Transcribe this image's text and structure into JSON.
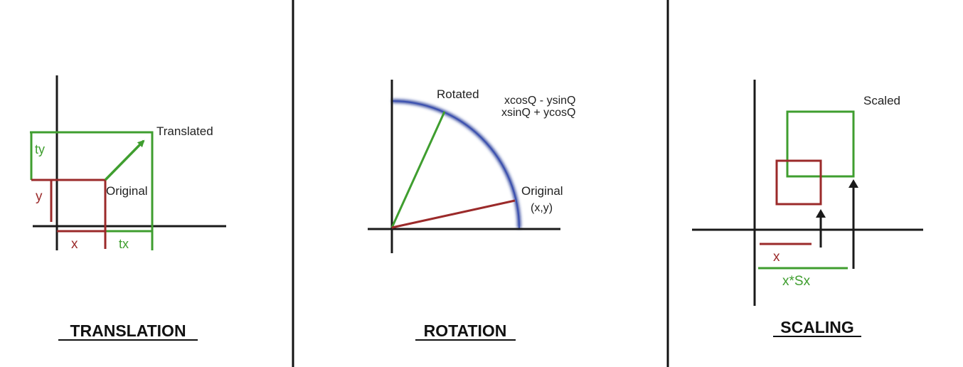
{
  "colors": {
    "axis": "#1a1a1a",
    "original": "#9b2a2a",
    "transformed": "#3f9e2f",
    "arc": "#2c3f9a",
    "text": "#222222"
  },
  "panels": {
    "translation": {
      "title": "TRANSLATION",
      "label_transformed": "Translated",
      "label_original": "Original",
      "var_x": "x",
      "var_y": "y",
      "var_tx": "tx",
      "var_ty": "ty"
    },
    "rotation": {
      "title": "ROTATION",
      "label_rotated": "Rotated",
      "formula_line1": "xcosQ - ysinQ",
      "formula_line2": "xsinQ + ycosQ",
      "label_original": "Original",
      "label_point": "(x,y)"
    },
    "scaling": {
      "title": "SCALING",
      "label_scaled": "Scaled",
      "var_x": "x",
      "var_scaled_x": "x*Sx"
    }
  }
}
